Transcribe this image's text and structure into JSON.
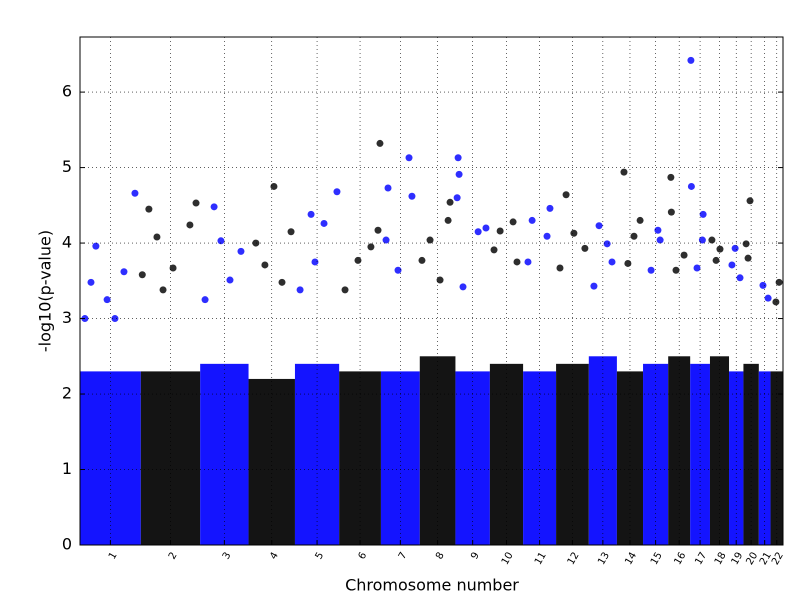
{
  "chart_data": {
    "type": "scatter",
    "xlabel": "Chromosome number",
    "ylabel": "-log10(p-value)",
    "xlim": [
      0,
      2878
    ],
    "ylim": [
      0,
      6.73
    ],
    "grid": true,
    "yticks": [
      0,
      1,
      2,
      3,
      4,
      5,
      6
    ],
    "xticks": [
      {
        "value": 124.5,
        "label": "1"
      },
      {
        "value": 370.5,
        "label": "2"
      },
      {
        "value": 591,
        "label": "3"
      },
      {
        "value": 785,
        "label": "4"
      },
      {
        "value": 970.5,
        "label": "5"
      },
      {
        "value": 1146.5,
        "label": "6"
      },
      {
        "value": 1311.5,
        "label": "7"
      },
      {
        "value": 1464,
        "label": "8"
      },
      {
        "value": 1607.5,
        "label": "9"
      },
      {
        "value": 1746,
        "label": "10"
      },
      {
        "value": 1881.5,
        "label": "11"
      },
      {
        "value": 2016,
        "label": "12"
      },
      {
        "value": 2140.5,
        "label": "13"
      },
      {
        "value": 2251.5,
        "label": "14"
      },
      {
        "value": 2356.5,
        "label": "15"
      },
      {
        "value": 2453,
        "label": "16"
      },
      {
        "value": 2538.5,
        "label": "17"
      },
      {
        "value": 2618,
        "label": "18"
      },
      {
        "value": 2686.5,
        "label": "19"
      },
      {
        "value": 2747.5,
        "label": "20"
      },
      {
        "value": 2803,
        "label": "21"
      },
      {
        "value": 2852.5,
        "label": "22"
      }
    ],
    "chromosomes": [
      {
        "color": "#0000ff",
        "start": 0,
        "end": 249,
        "band": 2.3,
        "x": [
          65,
          225,
          45,
          111,
          180,
          20,
          143
        ],
        "y": [
          3.96,
          4.66,
          3.48,
          3.25,
          3.62,
          3.0,
          3.0
        ]
      },
      {
        "color": "#000000",
        "start": 249,
        "end": 492,
        "band": 2.3,
        "x": [
          282,
          315,
          475,
          450,
          381,
          255,
          340
        ],
        "y": [
          4.45,
          4.08,
          4.53,
          4.24,
          3.67,
          3.58,
          3.38
        ]
      },
      {
        "color": "#0000ff",
        "start": 492,
        "end": 690,
        "band": 2.4,
        "x": [
          549,
          659,
          577,
          614,
          512
        ],
        "y": [
          4.48,
          3.89,
          4.03,
          3.51,
          3.25
        ]
      },
      {
        "color": "#000000",
        "start": 690,
        "end": 880,
        "band": 2.2,
        "x": [
          794,
          864,
          720,
          757,
          827
        ],
        "y": [
          4.75,
          4.15,
          4.0,
          3.71,
          3.48
        ]
      },
      {
        "color": "#0000ff",
        "start": 880,
        "end": 1061,
        "band": 2.4,
        "x": [
          946,
          1052,
          999,
          901,
          962
        ],
        "y": [
          4.38,
          4.68,
          4.26,
          3.38,
          3.75
        ]
      },
      {
        "color": "#000000",
        "start": 1061,
        "end": 1232,
        "band": 2.3,
        "x": [
          1228,
          1138,
          1191,
          1085,
          1220
        ],
        "y": [
          5.32,
          3.77,
          3.95,
          3.38,
          4.17
        ]
      },
      {
        "color": "#0000ff",
        "start": 1232,
        "end": 1391,
        "band": 2.3,
        "x": [
          1347,
          1261,
          1253,
          1359,
          1302
        ],
        "y": [
          5.13,
          4.73,
          4.04,
          4.62,
          3.64
        ]
      },
      {
        "color": "#000000",
        "start": 1391,
        "end": 1537,
        "band": 2.5,
        "x": [
          1433,
          1515,
          1507,
          1400,
          1474
        ],
        "y": [
          4.04,
          4.54,
          4.3,
          3.77,
          3.51
        ]
      },
      {
        "color": "#0000ff",
        "start": 1537,
        "end": 1678,
        "band": 2.3,
        "x": [
          1548,
          1552,
          1544,
          1630,
          1662,
          1568
        ],
        "y": [
          5.13,
          4.91,
          4.6,
          4.15,
          4.2,
          3.42
        ]
      },
      {
        "color": "#000000",
        "start": 1678,
        "end": 1814,
        "band": 2.4,
        "x": [
          1773,
          1720,
          1695,
          1789
        ],
        "y": [
          4.28,
          4.16,
          3.91,
          3.75
        ]
      },
      {
        "color": "#0000ff",
        "start": 1814,
        "end": 1949,
        "band": 2.3,
        "x": [
          1851,
          1912,
          1834,
          1924
        ],
        "y": [
          4.3,
          4.09,
          3.75,
          4.46
        ]
      },
      {
        "color": "#000000",
        "start": 1949,
        "end": 2083,
        "band": 2.4,
        "x": [
          1990,
          2022,
          2067,
          1965
        ],
        "y": [
          4.64,
          4.13,
          3.93,
          3.67
        ]
      },
      {
        "color": "#0000ff",
        "start": 2083,
        "end": 2198,
        "band": 2.5,
        "x": [
          2125,
          2158,
          2104,
          2178
        ],
        "y": [
          4.23,
          3.99,
          3.43,
          3.75
        ]
      },
      {
        "color": "#000000",
        "start": 2198,
        "end": 2305,
        "band": 2.3,
        "x": [
          2227,
          2293,
          2268,
          2243
        ],
        "y": [
          4.94,
          4.3,
          4.09,
          3.73
        ]
      },
      {
        "color": "#0000ff",
        "start": 2305,
        "end": 2408,
        "band": 2.4,
        "x": [
          2366,
          2375,
          2338
        ],
        "y": [
          4.17,
          4.04,
          3.64
        ]
      },
      {
        "color": "#000000",
        "start": 2408,
        "end": 2498,
        "band": 2.5,
        "x": [
          2419,
          2421,
          2473,
          2440
        ],
        "y": [
          4.87,
          4.41,
          3.84,
          3.64
        ]
      },
      {
        "color": "#0000ff",
        "start": 2498,
        "end": 2579,
        "band": 2.4,
        "x": [
          2501,
          2503,
          2551,
          2548,
          2526
        ],
        "y": [
          6.42,
          4.75,
          4.38,
          4.04,
          3.67
        ]
      },
      {
        "color": "#000000",
        "start": 2579,
        "end": 2657,
        "band": 2.5,
        "x": [
          2587,
          2620,
          2604
        ],
        "y": [
          4.04,
          3.92,
          3.77
        ]
      },
      {
        "color": "#0000ff",
        "start": 2657,
        "end": 2716,
        "band": 2.3,
        "x": [
          2682,
          2702,
          2669
        ],
        "y": [
          3.93,
          3.54,
          3.71
        ]
      },
      {
        "color": "#000000",
        "start": 2716,
        "end": 2779,
        "band": 2.4,
        "x": [
          2743,
          2727,
          2735
        ],
        "y": [
          4.56,
          3.99,
          3.8
        ]
      },
      {
        "color": "#0000ff",
        "start": 2779,
        "end": 2827,
        "band": 2.3,
        "x": [
          2796,
          2817
        ],
        "y": [
          3.44,
          3.27
        ]
      },
      {
        "color": "#000000",
        "start": 2827,
        "end": 2878,
        "band": 2.3,
        "x": [
          2862,
          2849
        ],
        "y": [
          3.48,
          3.22
        ]
      }
    ]
  }
}
